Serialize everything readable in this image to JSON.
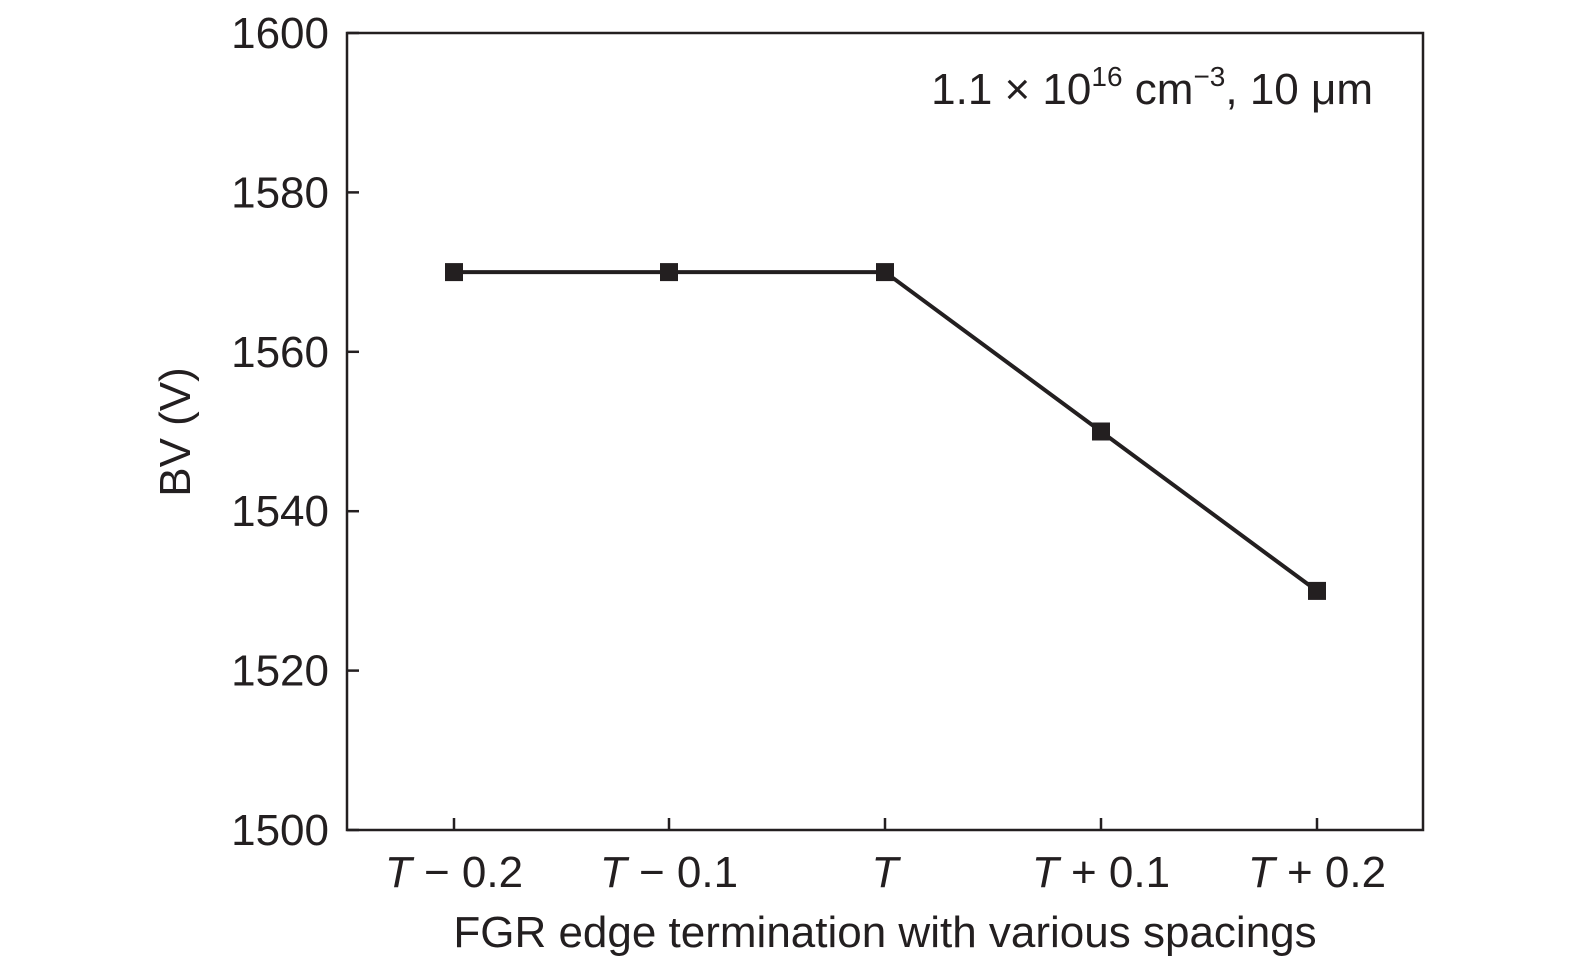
{
  "chart_data": {
    "type": "line",
    "categories": [
      "T − 0.2",
      "T − 0.1",
      "T",
      "T + 0.1",
      "T + 0.2"
    ],
    "category_labels": [
      {
        "var": "T",
        "rest": " − 0.2"
      },
      {
        "var": "T",
        "rest": " − 0.1"
      },
      {
        "var": "T",
        "rest": ""
      },
      {
        "var": "T",
        "rest": " + 0.1"
      },
      {
        "var": "T",
        "rest": " + 0.2"
      }
    ],
    "series": [
      {
        "values": [
          1570,
          1570,
          1570,
          1550,
          1530
        ]
      }
    ],
    "xlabel": "FGR edge termination with various spacings",
    "ylabel": "BV (V)",
    "ylim": [
      1500,
      1600
    ],
    "yticks": [
      1500,
      1520,
      1540,
      1560,
      1580,
      1600
    ],
    "annotation": {
      "base": "1.1 × 10",
      "exp1": "16",
      "mid": " cm",
      "exp2": "−3",
      "tail": ", 10 μm"
    },
    "grid": false,
    "legend": "none",
    "colors": {
      "ink": "#231f20"
    }
  }
}
